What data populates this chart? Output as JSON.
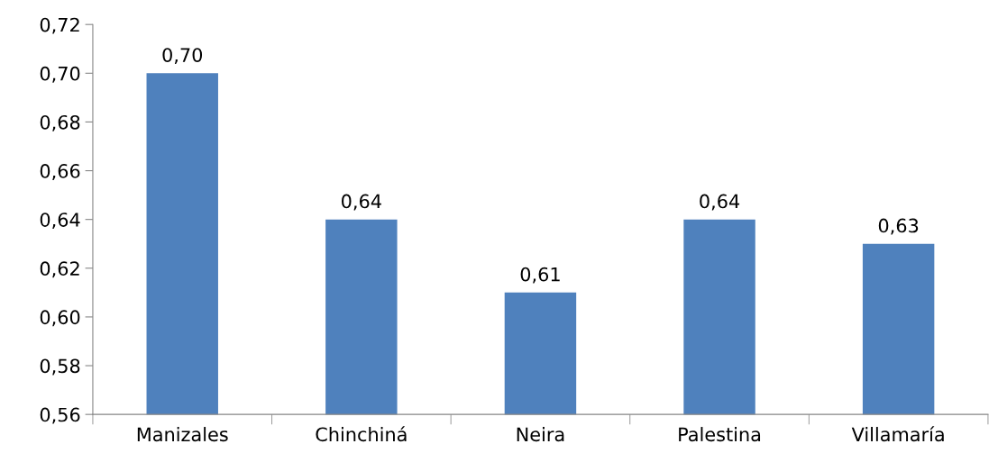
{
  "chart_data": {
    "type": "bar",
    "categories": [
      "Manizales",
      "Chinchiná",
      "Neira",
      "Palestina",
      "Villamaría"
    ],
    "values": [
      0.7,
      0.64,
      0.61,
      0.64,
      0.63
    ],
    "value_labels": [
      "0,70",
      "0,64",
      "0,61",
      "0,64",
      "0,63"
    ],
    "color": "#4f81bd",
    "ylim": [
      0.56,
      0.72
    ],
    "yticks": [
      {
        "value": 0.56,
        "label": "0,56"
      },
      {
        "value": 0.58,
        "label": "0,58"
      },
      {
        "value": 0.6,
        "label": "0,60"
      },
      {
        "value": 0.62,
        "label": "0,62"
      },
      {
        "value": 0.64,
        "label": "0,64"
      },
      {
        "value": 0.66,
        "label": "0,66"
      },
      {
        "value": 0.68,
        "label": "0,68"
      },
      {
        "value": 0.7,
        "label": "0,70"
      },
      {
        "value": 0.72,
        "label": "0,72"
      }
    ],
    "grid": false
  }
}
